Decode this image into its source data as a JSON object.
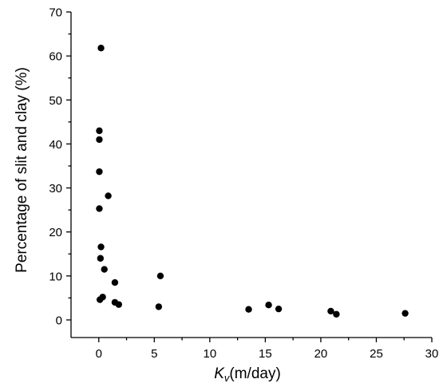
{
  "chart_data": {
    "type": "scatter",
    "title": "",
    "xlabel_symbol": "K",
    "xlabel_subscript": "v",
    "xlabel_unit": "(m/day)",
    "ylabel": "Percentage of slit and clay (%)",
    "xlim": [
      -2.5,
      30
    ],
    "ylim": [
      -4,
      70
    ],
    "xticks": [
      0,
      5,
      10,
      15,
      20,
      25,
      30
    ],
    "yticks": [
      0,
      10,
      20,
      30,
      40,
      50,
      60,
      70
    ],
    "grid": false,
    "legend": "none",
    "marker_color": "#000000",
    "series": [
      {
        "points": [
          [
            0.2,
            61.8
          ],
          [
            0.05,
            43.0
          ],
          [
            0.05,
            41.0
          ],
          [
            0.05,
            33.7
          ],
          [
            0.85,
            28.2
          ],
          [
            0.05,
            25.3
          ],
          [
            0.2,
            16.6
          ],
          [
            0.15,
            14.0
          ],
          [
            0.5,
            11.5
          ],
          [
            1.45,
            8.5
          ],
          [
            0.35,
            5.2
          ],
          [
            0.1,
            4.6
          ],
          [
            1.45,
            4.0
          ],
          [
            1.8,
            3.5
          ],
          [
            5.55,
            10.0
          ],
          [
            5.4,
            3.0
          ],
          [
            13.5,
            2.4
          ],
          [
            15.3,
            3.4
          ],
          [
            16.2,
            2.5
          ],
          [
            20.9,
            2.0
          ],
          [
            21.4,
            1.3
          ],
          [
            27.6,
            1.5
          ]
        ]
      }
    ]
  }
}
